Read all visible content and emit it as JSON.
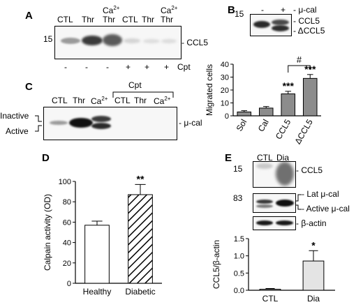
{
  "panels": {
    "A": {
      "letter": "A",
      "lanes": [
        "CTL",
        "Thr",
        "Ca2+",
        "CTL",
        "Thr",
        "Ca2+"
      ],
      "lane_ca_base": "Ca",
      "lane_ca_sup": "2+",
      "thr_under_ca": "Thr",
      "mw": "15",
      "band_label": "CCL5",
      "cpt_signs": [
        "-",
        "-",
        "-",
        "+",
        "+",
        "+"
      ],
      "cpt_label": "Cpt"
    },
    "B": {
      "letter": "B",
      "blot": {
        "mw": "15",
        "signs": [
          "-",
          "+"
        ],
        "treatment": "μ-cal",
        "band_upper": "CCL5",
        "band_lower": "ΔCCL5"
      },
      "chart_data": {
        "type": "bar",
        "categories": [
          "Sol",
          "Cal",
          "CCL5",
          "ΔCCL5"
        ],
        "values": [
          3,
          6,
          17,
          29
        ],
        "errors": [
          1,
          1.2,
          2,
          3
        ],
        "ylabel": "Migrated cells",
        "ylim": [
          0,
          40
        ],
        "yticks": [
          "0",
          "10",
          "20",
          "30",
          "40"
        ],
        "significance": [
          "",
          "",
          "***",
          "***"
        ],
        "bracket_label": "#",
        "bar_color": "#8c8c8c"
      }
    },
    "C": {
      "letter": "C",
      "group_label": "Cpt",
      "lanes": [
        "CTL",
        "Thr",
        "Ca2+",
        "CTL",
        "Thr",
        "Ca2+"
      ],
      "lane_ca_base": "Ca",
      "lane_ca_sup": "2+",
      "label_inactive": "Inactive",
      "label_active": "Active",
      "band_label": "μ-cal"
    },
    "D": {
      "letter": "D",
      "chart_data": {
        "type": "bar",
        "categories": [
          "Healthy",
          "Diabetic"
        ],
        "values": [
          57,
          87
        ],
        "errors": [
          4,
          10
        ],
        "ylabel": "Calpain activity (OD)",
        "ylim": [
          0,
          100
        ],
        "yticks": [
          "0",
          "20",
          "40",
          "60",
          "80",
          "100"
        ],
        "significance": [
          "",
          "**"
        ],
        "fills": [
          "white",
          "hatched"
        ]
      }
    },
    "E": {
      "letter": "E",
      "lanes": [
        "CTL",
        "Dia"
      ],
      "mw_ccl5": "15",
      "mw_cal": "83",
      "label_ccl5": "CCL5",
      "label_lat": "Lat μ-cal",
      "label_active": "Active μ-cal",
      "label_actin": "β-actin",
      "chart_data": {
        "type": "bar",
        "categories": [
          "CTL",
          "Dia"
        ],
        "values": [
          0.03,
          0.85
        ],
        "errors": [
          0.02,
          0.3
        ],
        "ylabel": "CCL5/β-actin",
        "ylim": [
          0,
          1.5
        ],
        "yticks": [
          "0.0",
          "0.5",
          "1.0",
          "1.5"
        ],
        "significance": [
          "",
          "*"
        ],
        "bar_color": "#e4e4e4"
      }
    }
  }
}
